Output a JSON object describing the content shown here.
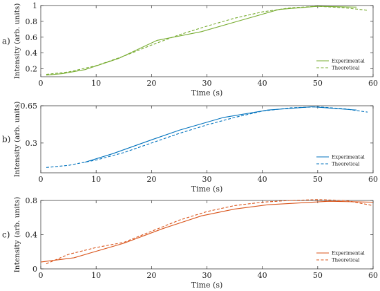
{
  "chart_data": [
    {
      "type": "line",
      "panel_label": "a)",
      "xlabel": "Time (s)",
      "ylabel": "Intensity (arb. units)",
      "xlim": [
        0,
        60
      ],
      "ylim": [
        0.1,
        1.0
      ],
      "xticks": [
        0,
        10,
        20,
        30,
        40,
        50,
        60
      ],
      "yticks": [
        0.2,
        0.4,
        0.6,
        0.8,
        1
      ],
      "grid": false,
      "legend_position": "bottom-right",
      "color": "#77AC30",
      "series": [
        {
          "name": "Experimental",
          "style": "solid",
          "x": [
            1,
            4,
            8,
            14,
            21,
            29,
            35,
            43,
            50,
            57
          ],
          "y": [
            0.12,
            0.14,
            0.19,
            0.33,
            0.56,
            0.67,
            0.79,
            0.95,
            0.99,
            0.98
          ]
        },
        {
          "name": "Theoretical",
          "style": "dashed",
          "x": [
            1,
            5,
            10,
            15,
            20,
            25,
            30,
            35,
            40,
            45,
            50,
            55,
            59
          ],
          "y": [
            0.13,
            0.16,
            0.24,
            0.36,
            0.5,
            0.63,
            0.74,
            0.84,
            0.92,
            0.97,
            0.99,
            0.97,
            0.94
          ]
        }
      ]
    },
    {
      "type": "line",
      "panel_label": "b)",
      "xlabel": "Time (s)",
      "ylabel": "Intensity (arb. units)",
      "xlim": [
        0,
        60
      ],
      "ylim": [
        0.02,
        0.65
      ],
      "xticks": [
        0,
        10,
        20,
        30,
        40,
        50,
        60
      ],
      "yticks": [
        0.3,
        0.65
      ],
      "grid": false,
      "legend_position": "bottom-right",
      "color": "#0072BD",
      "series": [
        {
          "name": "Experimental",
          "style": "solid",
          "x": [
            8,
            13,
            20,
            25,
            33,
            41,
            49,
            57
          ],
          "y": [
            0.12,
            0.2,
            0.33,
            0.42,
            0.54,
            0.61,
            0.64,
            0.61
          ]
        },
        {
          "name": "Theoretical",
          "style": "dashed",
          "x": [
            1,
            5,
            10,
            15,
            20,
            25,
            30,
            35,
            40,
            45,
            50,
            55,
            59
          ],
          "y": [
            0.07,
            0.09,
            0.14,
            0.21,
            0.3,
            0.39,
            0.47,
            0.54,
            0.6,
            0.63,
            0.64,
            0.62,
            0.59
          ]
        }
      ]
    },
    {
      "type": "line",
      "panel_label": "c)",
      "xlabel": "Time (s)",
      "ylabel": "Intensity (arb. units)",
      "xlim": [
        0,
        60
      ],
      "ylim": [
        0,
        0.8
      ],
      "xticks": [
        0,
        10,
        20,
        30,
        40,
        50,
        60
      ],
      "yticks": [
        0,
        0.4,
        0.8
      ],
      "grid": false,
      "legend_position": "bottom-right",
      "color": "#D95319",
      "series": [
        {
          "name": "Experimental",
          "style": "solid",
          "x": [
            0,
            6,
            15,
            22,
            29,
            35,
            41,
            52,
            60
          ],
          "y": [
            0.08,
            0.13,
            0.3,
            0.47,
            0.62,
            0.7,
            0.75,
            0.79,
            0.78
          ]
        },
        {
          "name": "Theoretical",
          "style": "dashed",
          "x": [
            1,
            5,
            10,
            15,
            20,
            25,
            30,
            35,
            40,
            45,
            50,
            55,
            60
          ],
          "y": [
            0.06,
            0.17,
            0.25,
            0.31,
            0.44,
            0.57,
            0.67,
            0.74,
            0.78,
            0.8,
            0.81,
            0.8,
            0.74
          ]
        }
      ]
    }
  ]
}
